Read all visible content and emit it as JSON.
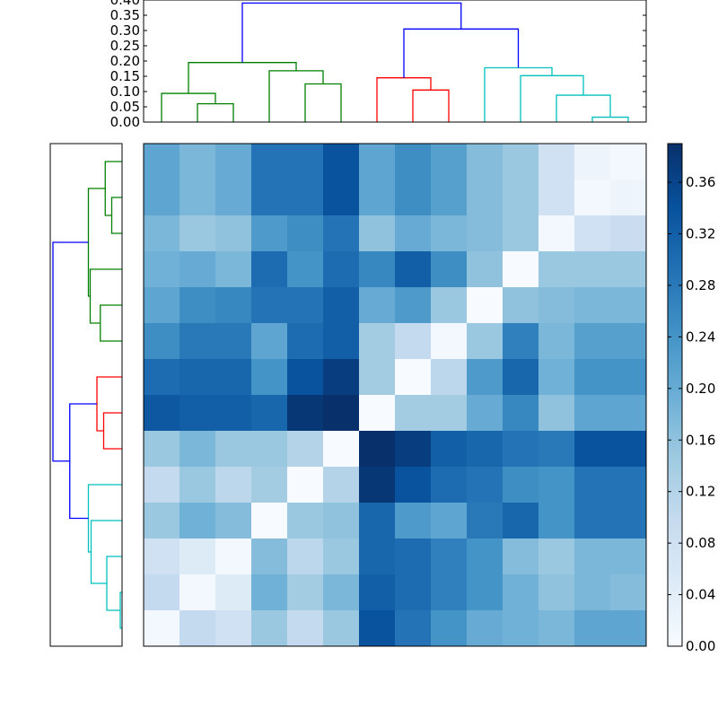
{
  "chart_data": [
    {
      "type": "dendrogram",
      "orientation": "top",
      "ylim": [
        0,
        0.4
      ],
      "ytick_labels": [
        "0.00",
        "0.05",
        "0.10",
        "0.15",
        "0.20",
        "0.25",
        "0.30",
        "0.35",
        "0.40"
      ],
      "leaf_count": 14,
      "links": [
        {
          "left": 1.5,
          "right": 2.5,
          "left_h": 0.0,
          "right_h": 0.0,
          "h": 0.06,
          "color": "#008000"
        },
        {
          "left": 0.5,
          "right": 2.0,
          "left_h": 0.0,
          "right_h": 0.06,
          "h": 0.094,
          "color": "#008000"
        },
        {
          "left": 4.5,
          "right": 5.5,
          "left_h": 0.0,
          "right_h": 0.0,
          "h": 0.125,
          "color": "#008000"
        },
        {
          "left": 3.5,
          "right": 5.0,
          "left_h": 0.0,
          "right_h": 0.125,
          "h": 0.168,
          "color": "#008000"
        },
        {
          "left": 1.25,
          "right": 4.25,
          "left_h": 0.094,
          "right_h": 0.168,
          "h": 0.195,
          "color": "#008000"
        },
        {
          "left": 7.5,
          "right": 8.5,
          "left_h": 0.0,
          "right_h": 0.0,
          "h": 0.105,
          "color": "#ff0000"
        },
        {
          "left": 6.5,
          "right": 8.0,
          "left_h": 0.0,
          "right_h": 0.105,
          "h": 0.145,
          "color": "#ff0000"
        },
        {
          "left": 12.5,
          "right": 13.5,
          "left_h": 0.0,
          "right_h": 0.0,
          "h": 0.016,
          "color": "#00bfbf"
        },
        {
          "left": 11.5,
          "right": 13.0,
          "left_h": 0.0,
          "right_h": 0.016,
          "h": 0.088,
          "color": "#00bfbf"
        },
        {
          "left": 10.5,
          "right": 12.25,
          "left_h": 0.0,
          "right_h": 0.088,
          "h": 0.152,
          "color": "#00bfbf"
        },
        {
          "left": 9.5,
          "right": 11.375,
          "left_h": 0.0,
          "right_h": 0.152,
          "h": 0.178,
          "color": "#00bfbf"
        },
        {
          "left": 7.25,
          "right": 10.4375,
          "left_h": 0.145,
          "right_h": 0.178,
          "h": 0.305,
          "color": "#0000ff"
        },
        {
          "left": 2.75,
          "right": 8.84375,
          "left_h": 0.195,
          "right_h": 0.305,
          "h": 0.39,
          "color": "#0000ff"
        }
      ]
    },
    {
      "type": "dendrogram",
      "orientation": "left",
      "leaf_count": 14,
      "links": [
        {
          "a": 1.5,
          "b": 2.5,
          "a_h": 0.0,
          "b_h": 0.0,
          "h": 0.046,
          "color": "#008000"
        },
        {
          "a": 0.5,
          "b": 2.0,
          "a_h": 0.0,
          "b_h": 0.046,
          "h": 0.075,
          "color": "#008000"
        },
        {
          "a": 4.5,
          "b": 5.5,
          "a_h": 0.0,
          "b_h": 0.0,
          "h": 0.097,
          "color": "#008000"
        },
        {
          "a": 3.5,
          "b": 5.0,
          "a_h": 0.0,
          "b_h": 0.097,
          "h": 0.142,
          "color": "#008000"
        },
        {
          "a": 1.25,
          "b": 4.25,
          "a_h": 0.075,
          "b_h": 0.142,
          "h": 0.15,
          "color": "#008000"
        },
        {
          "a": 7.5,
          "b": 8.5,
          "a_h": 0.0,
          "b_h": 0.0,
          "h": 0.082,
          "color": "#ff0000"
        },
        {
          "a": 6.5,
          "b": 8.0,
          "a_h": 0.0,
          "b_h": 0.082,
          "h": 0.112,
          "color": "#ff0000"
        },
        {
          "a": 12.5,
          "b": 13.5,
          "a_h": 0.0,
          "b_h": 0.0,
          "h": 0.008,
          "color": "#00bfbf"
        },
        {
          "a": 11.5,
          "b": 13.0,
          "a_h": 0.0,
          "b_h": 0.008,
          "h": 0.068,
          "color": "#00bfbf"
        },
        {
          "a": 10.5,
          "b": 12.25,
          "a_h": 0.0,
          "b_h": 0.068,
          "h": 0.138,
          "color": "#00bfbf"
        },
        {
          "a": 9.5,
          "b": 11.375,
          "a_h": 0.0,
          "b_h": 0.138,
          "h": 0.15,
          "color": "#00bfbf"
        },
        {
          "a": 7.25,
          "b": 10.4375,
          "a_h": 0.112,
          "b_h": 0.15,
          "h": 0.233,
          "color": "#0000ff"
        },
        {
          "a": 2.75,
          "b": 8.84375,
          "a_h": 0.15,
          "b_h": 0.233,
          "h": 0.308,
          "color": "#0000ff"
        }
      ]
    },
    {
      "type": "heatmap",
      "rows": 14,
      "cols": 14,
      "vmin": 0.0,
      "vmax": 0.39,
      "colormap": "Blues",
      "values": [
        [
          0.21,
          0.18,
          0.2,
          0.29,
          0.29,
          0.34,
          0.21,
          0.25,
          0.22,
          0.17,
          0.15,
          0.08,
          0.02,
          0.01
        ],
        [
          0.21,
          0.18,
          0.2,
          0.29,
          0.29,
          0.34,
          0.21,
          0.25,
          0.22,
          0.17,
          0.15,
          0.08,
          0.01,
          0.02
        ],
        [
          0.18,
          0.15,
          0.16,
          0.23,
          0.25,
          0.29,
          0.16,
          0.2,
          0.18,
          0.17,
          0.15,
          0.01,
          0.08,
          0.09
        ],
        [
          0.19,
          0.2,
          0.18,
          0.3,
          0.24,
          0.3,
          0.26,
          0.32,
          0.25,
          0.16,
          0.0,
          0.15,
          0.15,
          0.15
        ],
        [
          0.21,
          0.25,
          0.26,
          0.29,
          0.29,
          0.32,
          0.2,
          0.23,
          0.15,
          0.0,
          0.16,
          0.17,
          0.18,
          0.18
        ],
        [
          0.25,
          0.28,
          0.28,
          0.21,
          0.3,
          0.32,
          0.14,
          0.1,
          0.01,
          0.15,
          0.27,
          0.18,
          0.22,
          0.22
        ],
        [
          0.3,
          0.31,
          0.31,
          0.24,
          0.34,
          0.37,
          0.14,
          0.0,
          0.11,
          0.23,
          0.31,
          0.19,
          0.24,
          0.24
        ],
        [
          0.33,
          0.32,
          0.32,
          0.31,
          0.38,
          0.39,
          0.0,
          0.14,
          0.14,
          0.2,
          0.26,
          0.16,
          0.21,
          0.21
        ],
        [
          0.15,
          0.18,
          0.15,
          0.15,
          0.12,
          0.0,
          0.39,
          0.37,
          0.32,
          0.31,
          0.29,
          0.28,
          0.34,
          0.34
        ],
        [
          0.1,
          0.15,
          0.11,
          0.14,
          0.0,
          0.12,
          0.38,
          0.34,
          0.3,
          0.29,
          0.25,
          0.24,
          0.29,
          0.29
        ],
        [
          0.15,
          0.19,
          0.17,
          0.0,
          0.15,
          0.16,
          0.31,
          0.23,
          0.21,
          0.28,
          0.31,
          0.24,
          0.29,
          0.29
        ],
        [
          0.08,
          0.05,
          0.01,
          0.17,
          0.11,
          0.15,
          0.31,
          0.3,
          0.27,
          0.24,
          0.17,
          0.15,
          0.18,
          0.18
        ],
        [
          0.1,
          0.01,
          0.05,
          0.19,
          0.14,
          0.18,
          0.32,
          0.3,
          0.27,
          0.24,
          0.19,
          0.16,
          0.18,
          0.17
        ],
        [
          0.01,
          0.1,
          0.08,
          0.15,
          0.1,
          0.15,
          0.34,
          0.29,
          0.24,
          0.2,
          0.19,
          0.18,
          0.21,
          0.21
        ]
      ]
    },
    {
      "type": "colorbar",
      "vmin": 0.0,
      "vmax": 0.39,
      "colormap": "Blues",
      "tick_labels": [
        "0.00",
        "0.04",
        "0.08",
        "0.12",
        "0.16",
        "0.20",
        "0.24",
        "0.28",
        "0.32",
        "0.36"
      ]
    }
  ]
}
